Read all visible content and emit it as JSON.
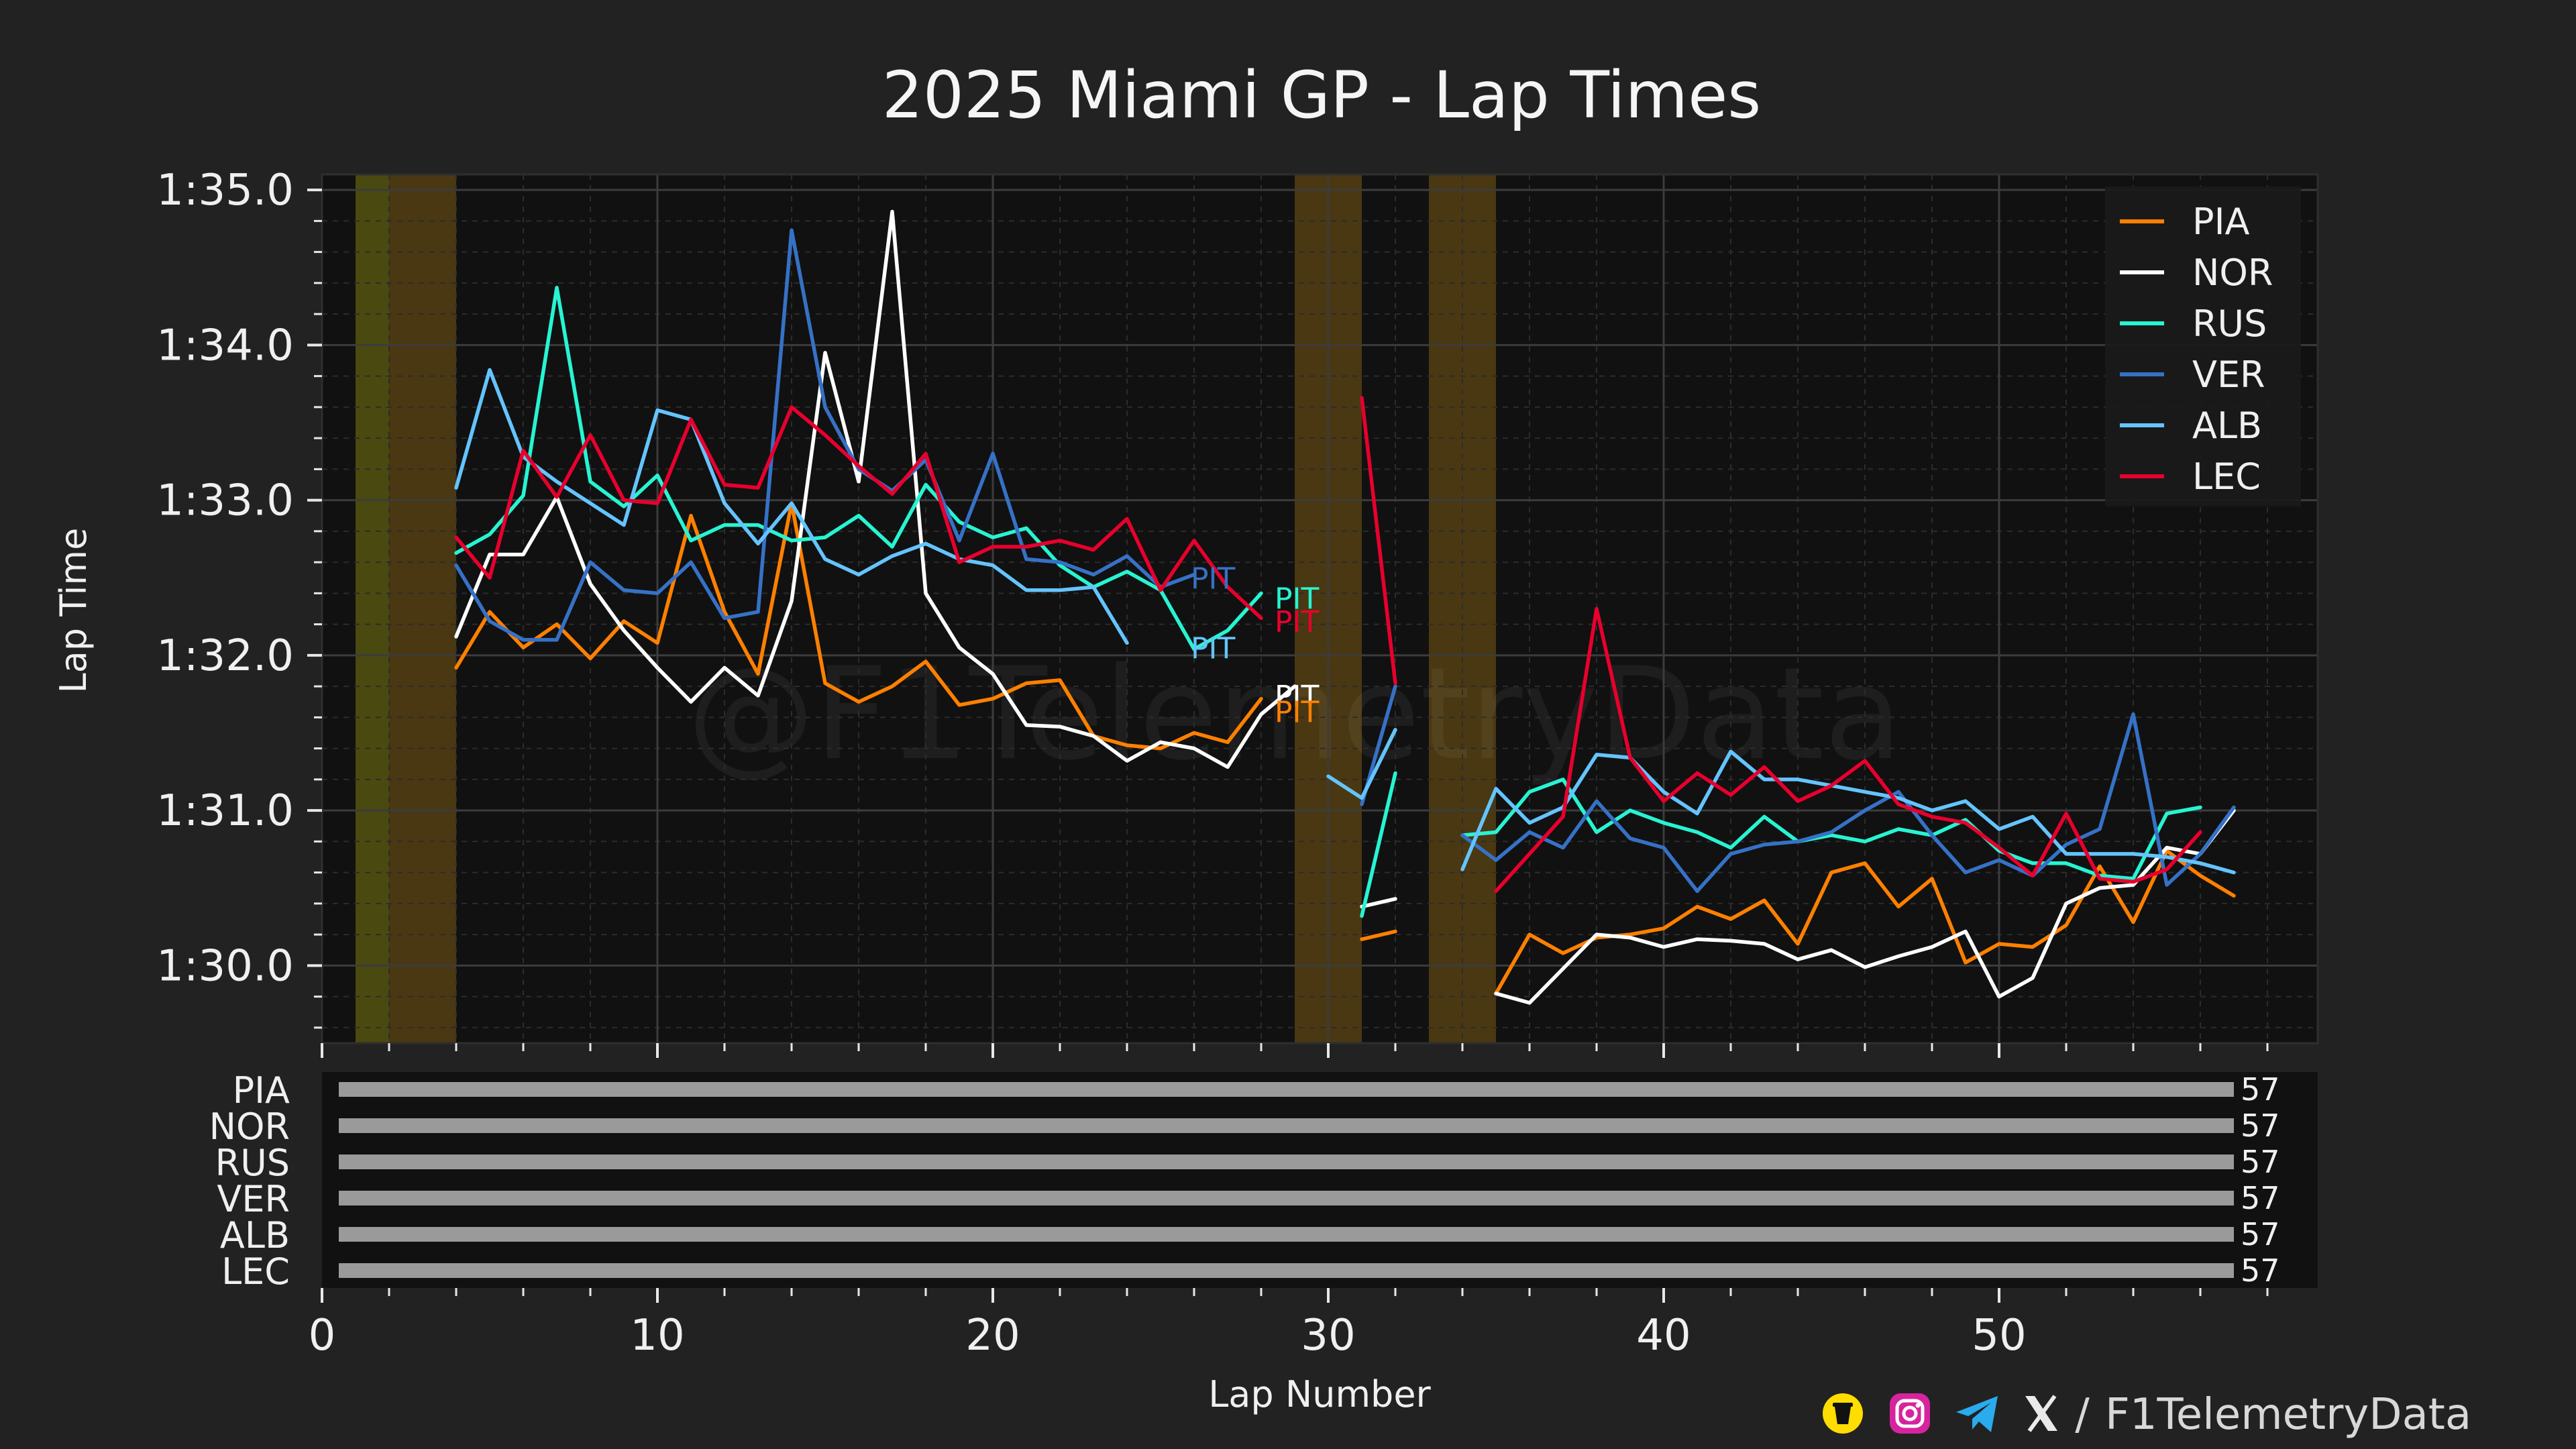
{
  "watermark": "@F1TelemetryData",
  "footer": {
    "sep": "/",
    "handle": "F1TelemetryData",
    "icons": [
      "buymeacoffee-icon",
      "instagram-icon",
      "telegram-icon",
      "x-icon"
    ]
  },
  "chart_data": {
    "type": "line",
    "title": "2025 Miami GP - Lap Times",
    "xlabel": "Lap Number",
    "ylabel": "Lap Time",
    "xlim": [
      0,
      59.5
    ],
    "ylim": [
      89.5,
      95.1
    ],
    "xticks": [
      {
        "v": 0,
        "label": "0"
      },
      {
        "v": 10,
        "label": "10"
      },
      {
        "v": 20,
        "label": "20"
      },
      {
        "v": 30,
        "label": "30"
      },
      {
        "v": 40,
        "label": "40"
      },
      {
        "v": 50,
        "label": "50"
      }
    ],
    "yticks": [
      {
        "v": 90,
        "label": "1:30.0"
      },
      {
        "v": 91,
        "label": "1:31.0"
      },
      {
        "v": 92,
        "label": "1:32.0"
      },
      {
        "v": 93,
        "label": "1:33.0"
      },
      {
        "v": 94,
        "label": "1:34.0"
      },
      {
        "v": 95,
        "label": "1:35.0"
      }
    ],
    "grid": true,
    "legend_position": "top-right",
    "caution_periods": [
      {
        "from": 1,
        "to": 2,
        "color": "#4a4a10"
      },
      {
        "from": 2,
        "to": 4,
        "color": "#4a3812"
      },
      {
        "from": 29,
        "to": 31,
        "color": "#4a3812"
      },
      {
        "from": 33,
        "to": 35,
        "color": "#4a3812"
      }
    ],
    "series": [
      {
        "name": "PIA",
        "color": "#ff8000",
        "segments": [
          {
            "x0": 4,
            "values": [
              91.92,
              92.28,
              92.05,
              92.2,
              91.98,
              92.22,
              92.08,
              92.9,
              92.28,
              91.88,
              92.98,
              91.82,
              91.7,
              91.8,
              91.96,
              91.68,
              91.72,
              91.82,
              91.84,
              91.48,
              91.42,
              91.4,
              91.5,
              91.44,
              91.72
            ]
          },
          {
            "x0": 31,
            "values": [
              90.17,
              90.22
            ]
          },
          {
            "x0": 35,
            "values": [
              89.82,
              90.2,
              90.08,
              90.18,
              90.2,
              90.24,
              90.38,
              90.3,
              90.42,
              90.14,
              90.6,
              90.66,
              90.38,
              90.56,
              90.02,
              90.14,
              90.12,
              90.26,
              90.64,
              90.28,
              90.74,
              90.58,
              90.45
            ]
          }
        ]
      },
      {
        "name": "NOR",
        "color": "#ffffff",
        "segments": [
          {
            "x0": 4,
            "values": [
              92.12,
              92.65,
              92.65,
              93.02,
              92.46,
              92.16,
              91.92,
              91.7,
              91.92,
              91.74,
              92.35,
              93.95,
              93.12,
              94.86,
              92.4,
              92.05,
              91.88,
              91.55,
              91.54,
              91.48,
              91.32,
              91.44,
              91.4,
              91.28,
              91.62,
              91.8
            ]
          },
          {
            "x0": 31,
            "values": [
              90.38,
              90.43
            ]
          },
          {
            "x0": 35,
            "values": [
              89.82,
              89.76,
              89.98,
              90.2,
              90.18,
              90.12,
              90.17,
              90.16,
              90.14,
              90.04,
              90.1,
              89.99,
              90.06,
              90.12,
              90.22,
              89.8,
              89.92,
              90.4,
              90.5,
              90.52,
              90.76,
              90.72,
              91.0
            ]
          }
        ]
      },
      {
        "name": "RUS",
        "color": "#27f4d2",
        "segments": [
          {
            "x0": 4,
            "values": [
              92.66,
              92.78,
              93.03,
              94.37,
              93.12,
              92.96,
              93.16,
              92.74,
              92.84,
              92.84,
              92.74,
              92.76,
              92.9,
              92.7,
              93.1,
              92.86,
              92.76,
              92.82,
              92.58,
              92.44,
              92.54,
              92.42,
              92.04,
              92.16,
              92.4
            ]
          },
          {
            "x0": 31,
            "values": [
              90.32,
              91.24
            ]
          },
          {
            "x0": 34,
            "values": [
              90.84,
              90.86,
              91.12,
              91.2,
              90.86,
              91.0,
              90.92,
              90.86,
              90.76,
              90.96,
              90.8,
              90.84,
              90.8,
              90.88,
              90.84,
              90.94,
              90.74,
              90.66,
              90.66,
              90.58,
              90.56,
              90.98,
              91.02
            ]
          }
        ]
      },
      {
        "name": "VER",
        "color": "#3671c6",
        "segments": [
          {
            "x0": 4,
            "values": [
              92.58,
              92.22,
              92.1,
              92.1,
              92.6,
              92.42,
              92.4,
              92.6,
              92.24,
              92.28,
              94.74,
              93.6,
              93.2,
              93.06,
              93.26,
              92.74,
              93.3,
              92.62,
              92.6,
              92.52,
              92.64,
              92.44,
              92.52
            ]
          },
          {
            "x0": 31,
            "values": [
              91.04,
              91.8
            ]
          },
          {
            "x0": 34,
            "values": [
              90.84,
              90.68,
              90.86,
              90.76,
              91.06,
              90.82,
              90.76,
              90.48,
              90.72,
              90.78,
              90.8,
              90.86,
              91.0,
              91.12,
              90.84,
              90.6,
              90.68,
              90.58,
              90.78,
              90.88,
              91.62,
              90.52,
              90.72,
              91.02
            ]
          }
        ]
      },
      {
        "name": "ALB",
        "color": "#64c4ff",
        "segments": [
          {
            "x0": 4,
            "values": [
              93.08,
              93.84,
              93.28,
              93.12,
              92.98,
              92.84,
              93.58,
              93.52,
              92.98,
              92.72,
              92.98,
              92.62,
              92.52,
              92.64,
              92.72,
              92.62,
              92.58,
              92.42,
              92.42,
              92.44,
              92.08
            ]
          },
          {
            "x0": 30,
            "values": [
              91.22,
              91.08,
              91.52
            ]
          },
          {
            "x0": 34,
            "values": [
              90.62,
              91.14,
              90.92,
              91.02,
              91.36,
              91.34,
              91.12,
              90.98,
              91.38,
              91.2,
              91.2,
              91.16,
              91.12,
              91.08,
              91.0,
              91.06,
              90.88,
              90.96,
              90.72,
              90.72,
              90.72,
              90.7,
              90.66,
              90.6
            ]
          }
        ]
      },
      {
        "name": "LEC",
        "color": "#e8002d",
        "segments": [
          {
            "x0": 4,
            "values": [
              92.76,
              92.5,
              93.32,
              93.02,
              93.42,
              93.0,
              92.98,
              93.52,
              93.1,
              93.08,
              93.6,
              93.42,
              93.22,
              93.04,
              93.3,
              92.6,
              92.7,
              92.7,
              92.74,
              92.68,
              92.88,
              92.42,
              92.74,
              92.44,
              92.24
            ]
          },
          {
            "x0": 31,
            "values": [
              93.66,
              91.82
            ]
          },
          {
            "x0": 35,
            "values": [
              90.48,
              90.72,
              90.96,
              92.3,
              91.34,
              91.06,
              91.24,
              91.1,
              91.28,
              91.06,
              91.16,
              91.32,
              91.04,
              90.96,
              90.92,
              90.76,
              90.58,
              90.98,
              90.56,
              90.54,
              90.62,
              90.86
            ]
          }
        ]
      }
    ],
    "pit_labels": [
      {
        "text": "PIT",
        "x": 25.9,
        "y": 92.43,
        "color": "#3671c6"
      },
      {
        "text": "PIT",
        "x": 28.4,
        "y": 92.3,
        "color": "#27f4d2"
      },
      {
        "text": "PIT",
        "x": 28.4,
        "y": 92.15,
        "color": "#e8002d"
      },
      {
        "text": "PIT",
        "x": 25.9,
        "y": 91.98,
        "color": "#64c4ff"
      },
      {
        "text": "PIT",
        "x": 28.4,
        "y": 91.67,
        "color": "#ffffff"
      },
      {
        "text": "PIT",
        "x": 28.4,
        "y": 91.57,
        "color": "#ff8000"
      }
    ],
    "laps_completed": {
      "drivers": [
        "PIA",
        "NOR",
        "RUS",
        "VER",
        "ALB",
        "LEC"
      ],
      "values": [
        57,
        57,
        57,
        57,
        57,
        57
      ],
      "color": "#9a9a9a"
    }
  }
}
